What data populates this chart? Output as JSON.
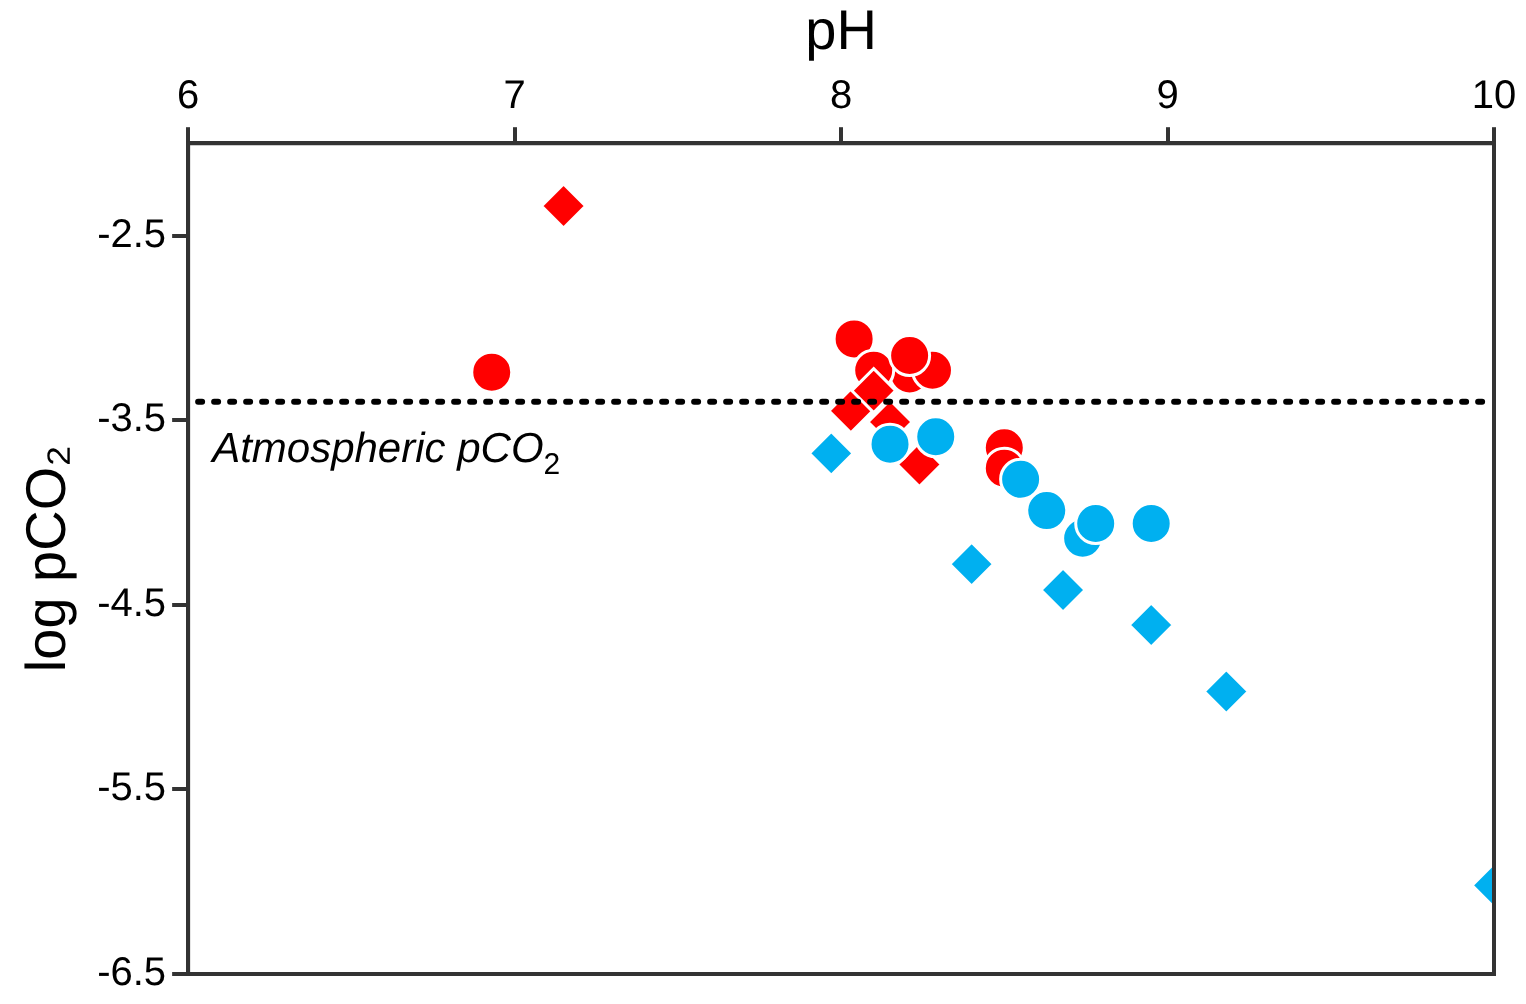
{
  "chart_data": {
    "type": "scatter",
    "xlabel": "pH",
    "ylabel": "log pCO₂",
    "xlim": [
      6,
      10
    ],
    "xticks": [
      6,
      7,
      8,
      9,
      10
    ],
    "ylim": [
      -6.5,
      -2
    ],
    "yticks": [
      -2.5,
      -3.5,
      -4.5,
      -5.5,
      -6.5
    ],
    "grid": false,
    "legend": false,
    "ref_lines": [
      {
        "axis": "y",
        "value": -3.4,
        "label": "Atmospheric pCO$_{2}$",
        "color": "#000000",
        "line_style": "dotted"
      }
    ],
    "series": [
      {
        "color": "#00b0f0",
        "marker": "diamond",
        "x": [
          7.97,
          8.4,
          8.68,
          8.95,
          9.18,
          10.0
        ],
        "values": [
          -3.68,
          -4.28,
          -4.42,
          -4.61,
          -4.97,
          -6.02
        ]
      },
      {
        "color": "#00b0f0",
        "marker": "circle",
        "x": [
          8.15,
          8.29,
          8.55,
          8.63,
          8.74,
          8.78,
          8.95
        ],
        "values": [
          -3.63,
          -3.59,
          -3.82,
          -3.99,
          -4.14,
          -4.06,
          -4.06
        ]
      },
      {
        "color": "#ff0000",
        "marker": "diamond",
        "x": [
          7.15,
          8.03,
          8.1,
          8.15,
          8.24
        ],
        "values": [
          -2.34,
          -3.45,
          -3.34,
          -3.51,
          -3.74
        ]
      },
      {
        "color": "#ff0000",
        "marker": "circle",
        "x": [
          6.93,
          8.04,
          8.1,
          8.21,
          8.5
        ],
        "values": [
          -3.24,
          -3.06,
          -3.23,
          -3.15,
          -3.76
        ]
      },
      {
        "color": "#ff0000",
        "marker": "circle",
        "x": [
          8.21,
          8.28,
          8.5
        ],
        "values": [
          -3.25,
          -3.23,
          -3.65
        ]
      }
    ]
  }
}
